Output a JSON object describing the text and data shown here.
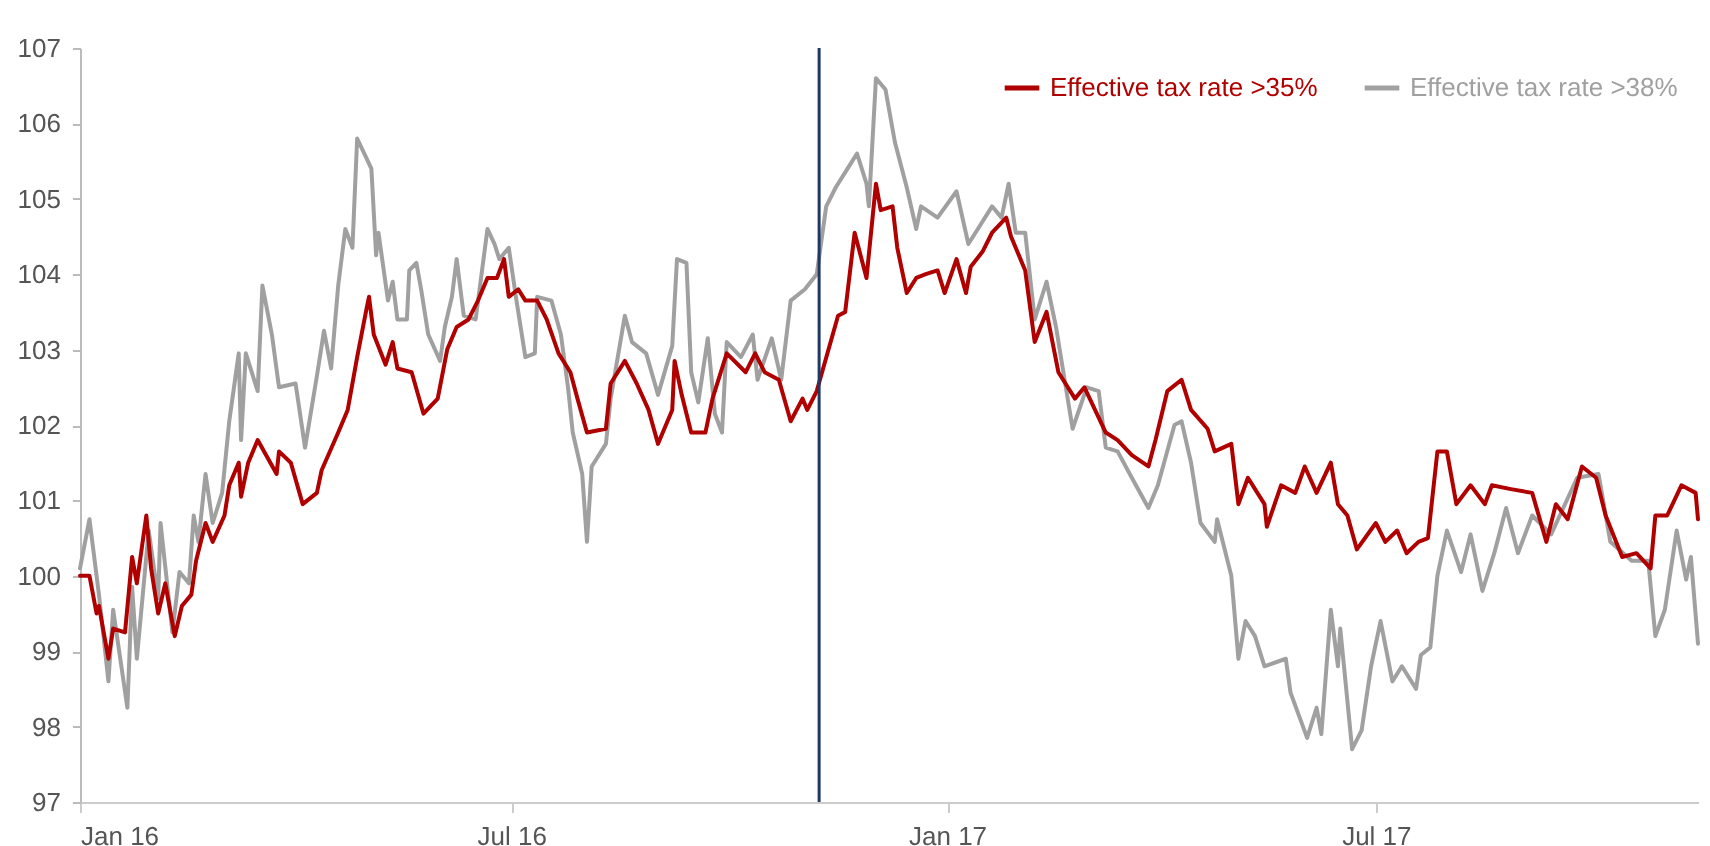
{
  "chart_data": {
    "type": "line",
    "xlim": [
      "2016-01-01",
      "2017-11-14"
    ],
    "xticks": [
      {
        "value": "2016-01-01",
        "label": "Jan 16"
      },
      {
        "value": "2016-07-01",
        "label": "Jul 16"
      },
      {
        "value": "2017-01-01",
        "label": "Jan 17"
      },
      {
        "value": "2017-07-01",
        "label": "Jul 17"
      }
    ],
    "ylim": [
      97,
      107
    ],
    "yticks": [
      97,
      98,
      99,
      100,
      101,
      102,
      103,
      104,
      105,
      106,
      107
    ],
    "grid": false,
    "legend": "top right",
    "ref_lines": [
      {
        "axis": "x",
        "value": "2016-11-08",
        "color": "#1f3864"
      }
    ],
    "series": [
      {
        "name": "Effective tax rate >35%",
        "color": "#b00000",
        "x": [
          "2016-01-01",
          "2016-01-05",
          "2016-01-08",
          "2016-01-09",
          "2016-01-13",
          "2016-01-15",
          "2016-01-20",
          "2016-01-23",
          "2016-01-25",
          "2016-01-29",
          "2016-01-31",
          "2016-02-03",
          "2016-02-06",
          "2016-02-10",
          "2016-02-13",
          "2016-02-17",
          "2016-02-19",
          "2016-02-23",
          "2016-02-26",
          "2016-03-02",
          "2016-03-04",
          "2016-03-08",
          "2016-03-09",
          "2016-03-12",
          "2016-03-16",
          "2016-03-24",
          "2016-03-25",
          "2016-03-30",
          "2016-04-04",
          "2016-04-10",
          "2016-04-12",
          "2016-04-19",
          "2016-04-23",
          "2016-04-27",
          "2016-05-01",
          "2016-05-02",
          "2016-05-04",
          "2016-05-09",
          "2016-05-12",
          "2016-05-14",
          "2016-05-20",
          "2016-05-25",
          "2016-05-31",
          "2016-06-04",
          "2016-06-08",
          "2016-06-13",
          "2016-06-17",
          "2016-06-21",
          "2016-06-25",
          "2016-06-28",
          "2016-06-30",
          "2016-07-04",
          "2016-07-07",
          "2016-07-12",
          "2016-07-16",
          "2016-07-21",
          "2016-07-26",
          "2016-07-29",
          "2016-08-02",
          "2016-08-10",
          "2016-08-12",
          "2016-08-18",
          "2016-08-23",
          "2016-08-28",
          "2016-09-01",
          "2016-09-07",
          "2016-09-08",
          "2016-09-11",
          "2016-09-15",
          "2016-09-21",
          "2016-09-24",
          "2016-09-30",
          "2016-10-08",
          "2016-10-12",
          "2016-10-16",
          "2016-10-22",
          "2016-10-27",
          "2016-11-01",
          "2016-11-03",
          "2016-11-07",
          "2016-11-16",
          "2016-11-19",
          "2016-11-23",
          "2016-11-28",
          "2016-12-02",
          "2016-12-04",
          "2016-12-09",
          "2016-12-11",
          "2016-12-15",
          "2016-12-19",
          "2016-12-23",
          "2016-12-28",
          "2016-12-31",
          "2017-01-05",
          "2017-01-09",
          "2017-01-11",
          "2017-01-16",
          "2017-01-20",
          "2017-01-26",
          "2017-01-28",
          "2017-02-03",
          "2017-02-07",
          "2017-02-12",
          "2017-02-17",
          "2017-02-24",
          "2017-02-28",
          "2017-03-09",
          "2017-03-14",
          "2017-03-20",
          "2017-03-27",
          "2017-03-30",
          "2017-04-04",
          "2017-04-10",
          "2017-04-14",
          "2017-04-21",
          "2017-04-24",
          "2017-05-01",
          "2017-05-04",
          "2017-05-08",
          "2017-05-15",
          "2017-05-16",
          "2017-05-22",
          "2017-05-28",
          "2017-06-01",
          "2017-06-06",
          "2017-06-12",
          "2017-06-15",
          "2017-06-19",
          "2017-06-23",
          "2017-07-01",
          "2017-07-05",
          "2017-07-10",
          "2017-07-14",
          "2017-07-19",
          "2017-07-23",
          "2017-07-27",
          "2017-07-31",
          "2017-08-04",
          "2017-08-10",
          "2017-08-16",
          "2017-08-19",
          "2017-08-27",
          "2017-09-05",
          "2017-09-11",
          "2017-09-15",
          "2017-09-20",
          "2017-09-26",
          "2017-10-02",
          "2017-10-06",
          "2017-10-13",
          "2017-10-19",
          "2017-10-25",
          "2017-10-27",
          "2017-11-01",
          "2017-11-07",
          "2017-11-13",
          "2017-11-14"
        ],
        "values": [
          100.0,
          100.0,
          99.5,
          99.6,
          98.9,
          99.3,
          99.25,
          100.25,
          99.9,
          100.8,
          100.1,
          99.5,
          99.9,
          99.2,
          99.6,
          99.75,
          100.2,
          100.7,
          100.45,
          100.8,
          101.2,
          101.5,
          101.05,
          101.5,
          101.8,
          101.35,
          101.65,
          101.5,
          100.95,
          101.1,
          101.4,
          101.9,
          102.2,
          102.9,
          103.55,
          103.7,
          103.2,
          102.8,
          103.1,
          102.75,
          102.7,
          102.15,
          102.35,
          103.0,
          103.3,
          103.4,
          103.65,
          103.95,
          103.95,
          104.2,
          103.7,
          103.8,
          103.65,
          103.65,
          103.4,
          102.95,
          102.7,
          102.35,
          101.9,
          101.95,
          102.55,
          102.85,
          102.55,
          102.2,
          101.75,
          102.2,
          102.85,
          102.4,
          101.9,
          101.9,
          102.35,
          102.95,
          102.7,
          102.95,
          102.7,
          102.6,
          102.05,
          102.35,
          102.2,
          102.45,
          103.45,
          103.5,
          104.55,
          103.95,
          105.2,
          104.85,
          104.9,
          104.35,
          103.75,
          103.95,
          104.0,
          104.05,
          103.75,
          104.2,
          103.75,
          104.1,
          104.3,
          104.55,
          104.75,
          104.5,
          104.05,
          103.1,
          103.5,
          102.7,
          102.35,
          102.5,
          101.9,
          101.8,
          101.6,
          101.45,
          101.8,
          102.45,
          102.6,
          102.2,
          101.95,
          101.65,
          101.75,
          100.95,
          101.3,
          100.95,
          100.65,
          101.2,
          101.1,
          101.45,
          101.1,
          101.5,
          100.95,
          100.8,
          100.35,
          100.7,
          100.45,
          100.6,
          100.3,
          100.45,
          100.5,
          101.65,
          101.65,
          100.95,
          101.2,
          100.95,
          101.2,
          101.15,
          101.1,
          100.45,
          100.95,
          100.75,
          101.45,
          101.3,
          100.8,
          100.25,
          100.3,
          100.1,
          100.8,
          100.8,
          101.2,
          101.1,
          100.75
        ]
      },
      {
        "name": "Effective tax rate >38%",
        "color": "#a0a0a0",
        "x": [
          "2016-01-01",
          "2016-01-05",
          "2016-01-09",
          "2016-01-13",
          "2016-01-15",
          "2016-01-21",
          "2016-01-23",
          "2016-01-25",
          "2016-01-30",
          "2016-02-03",
          "2016-02-04",
          "2016-02-09",
          "2016-02-12",
          "2016-02-16",
          "2016-02-18",
          "2016-02-20",
          "2016-02-23",
          "2016-02-26",
          "2016-03-01",
          "2016-03-04",
          "2016-03-08",
          "2016-03-09",
          "2016-03-11",
          "2016-03-16",
          "2016-03-18",
          "2016-03-22",
          "2016-03-25",
          "2016-04-01",
          "2016-04-05",
          "2016-04-10",
          "2016-04-13",
          "2016-04-16",
          "2016-04-19",
          "2016-04-22",
          "2016-04-25",
          "2016-04-27",
          "2016-05-03",
          "2016-05-05",
          "2016-05-06",
          "2016-05-10",
          "2016-05-12",
          "2016-05-14",
          "2016-05-18",
          "2016-05-19",
          "2016-05-22",
          "2016-05-24",
          "2016-05-27",
          "2016-06-01",
          "2016-06-03",
          "2016-06-06",
          "2016-06-08",
          "2016-06-11",
          "2016-06-16",
          "2016-06-21",
          "2016-06-24",
          "2016-06-26",
          "2016-06-30",
          "2016-07-03",
          "2016-07-07",
          "2016-07-11",
          "2016-07-12",
          "2016-07-18",
          "2016-07-22",
          "2016-07-25",
          "2016-07-27",
          "2016-07-31",
          "2016-08-02",
          "2016-08-04",
          "2016-08-10",
          "2016-08-12",
          "2016-08-18",
          "2016-08-21",
          "2016-08-27",
          "2016-09-01",
          "2016-09-07",
          "2016-09-09",
          "2016-09-13",
          "2016-09-15",
          "2016-09-18",
          "2016-09-22",
          "2016-09-25",
          "2016-09-28",
          "2016-09-30",
          "2016-10-06",
          "2016-10-11",
          "2016-10-13",
          "2016-10-19",
          "2016-10-23",
          "2016-10-27",
          "2016-11-02",
          "2016-11-07",
          "2016-11-11",
          "2016-11-15",
          "2016-11-20",
          "2016-11-24",
          "2016-11-28",
          "2016-11-29",
          "2016-12-02",
          "2016-12-06",
          "2016-12-10",
          "2016-12-15",
          "2016-12-19",
          "2016-12-21",
          "2016-12-28",
          "2017-01-05",
          "2017-01-10",
          "2017-01-14",
          "2017-01-20",
          "2017-01-24",
          "2017-01-27",
          "2017-01-30",
          "2017-02-03",
          "2017-02-07",
          "2017-02-12",
          "2017-02-16",
          "2017-02-23",
          "2017-03-01",
          "2017-03-06",
          "2017-03-09",
          "2017-03-14",
          "2017-03-20",
          "2017-03-27",
          "2017-03-31",
          "2017-04-07",
          "2017-04-10",
          "2017-04-14",
          "2017-04-18",
          "2017-04-24",
          "2017-04-25",
          "2017-05-01",
          "2017-05-04",
          "2017-05-07",
          "2017-05-11",
          "2017-05-15",
          "2017-05-24",
          "2017-05-26",
          "2017-06-02",
          "2017-06-06",
          "2017-06-08",
          "2017-06-12",
          "2017-06-15",
          "2017-06-16",
          "2017-06-21",
          "2017-06-25",
          "2017-06-29",
          "2017-07-03",
          "2017-07-08",
          "2017-07-12",
          "2017-07-18",
          "2017-07-20",
          "2017-07-24",
          "2017-07-27",
          "2017-07-31",
          "2017-08-06",
          "2017-08-10",
          "2017-08-15",
          "2017-08-20",
          "2017-08-25",
          "2017-08-30",
          "2017-09-05",
          "2017-09-13",
          "2017-09-24",
          "2017-10-03",
          "2017-10-08",
          "2017-10-17",
          "2017-10-24",
          "2017-10-27",
          "2017-10-31",
          "2017-11-05",
          "2017-11-09",
          "2017-11-11",
          "2017-11-14"
        ],
        "values": [
          100.1,
          100.75,
          99.75,
          98.6,
          99.55,
          98.25,
          99.85,
          98.9,
          100.6,
          99.7,
          100.7,
          99.25,
          100.05,
          99.9,
          100.8,
          100.45,
          101.35,
          100.7,
          101.1,
          102.05,
          102.95,
          101.8,
          102.95,
          102.45,
          103.85,
          103.2,
          102.5,
          102.55,
          101.7,
          102.65,
          103.25,
          102.75,
          103.85,
          104.6,
          104.35,
          105.8,
          105.4,
          104.25,
          104.55,
          103.65,
          103.9,
          103.4,
          103.4,
          104.05,
          104.15,
          103.8,
          103.2,
          102.85,
          103.3,
          103.7,
          104.2,
          103.45,
          103.4,
          104.6,
          104.4,
          104.2,
          104.35,
          103.7,
          102.9,
          102.95,
          103.7,
          103.65,
          103.2,
          102.5,
          101.9,
          101.35,
          100.45,
          101.45,
          101.75,
          102.35,
          103.45,
          103.1,
          102.95,
          102.4,
          103.05,
          104.2,
          104.15,
          102.7,
          102.3,
          103.15,
          102.15,
          101.9,
          103.1,
          102.9,
          103.2,
          102.6,
          103.15,
          102.6,
          103.65,
          103.8,
          104.0,
          104.9,
          105.15,
          105.4,
          105.6,
          105.2,
          104.9,
          106.6,
          106.45,
          105.75,
          105.15,
          104.6,
          104.9,
          104.75,
          105.1,
          104.4,
          104.6,
          104.9,
          104.75,
          105.2,
          104.55,
          104.55,
          103.4,
          103.9,
          103.3,
          101.95,
          102.5,
          102.45,
          101.7,
          101.65,
          101.3,
          100.9,
          101.2,
          102.0,
          102.05,
          101.5,
          100.7,
          100.45,
          100.75,
          100.0,
          98.9,
          99.4,
          99.2,
          98.8,
          98.9,
          98.45,
          97.85,
          98.25,
          97.9,
          99.55,
          98.8,
          99.3,
          97.7,
          97.95,
          98.8,
          99.4,
          98.6,
          98.8,
          98.5,
          98.95,
          99.05,
          100.0,
          100.6,
          100.05,
          100.55,
          99.8,
          100.3,
          100.9,
          100.3,
          100.8,
          100.55,
          101.3,
          101.35,
          100.45,
          100.2,
          100.2,
          99.2,
          99.55,
          100.6,
          99.95,
          100.25,
          99.1
        ]
      }
    ]
  }
}
